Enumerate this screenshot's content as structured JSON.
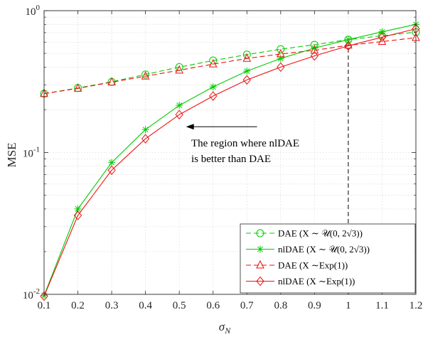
{
  "chart_data": {
    "type": "line",
    "title": "",
    "xlabel": "σ",
    "xlabel_subscript": "N",
    "ylabel": "MSE",
    "x": [
      0.1,
      0.2,
      0.3,
      0.4,
      0.5,
      0.6,
      0.7,
      0.8,
      0.9,
      1.0,
      1.1,
      1.2
    ],
    "xlim": [
      0.1,
      1.2
    ],
    "ylim": [
      0.01,
      1
    ],
    "yscale": "log",
    "grid": true,
    "legend_position": "bottom-right",
    "x_tick_labels": [
      "0.1",
      "0.2",
      "0.3",
      "0.4",
      "0.5",
      "0.6",
      "0.7",
      "0.8",
      "0.9",
      "1",
      "1.1",
      "1.2"
    ],
    "y_tick_labels": [
      {
        "value": 0.01,
        "base": "10",
        "exp": "-2"
      },
      {
        "value": 0.1,
        "base": "10",
        "exp": "-1"
      },
      {
        "value": 1,
        "base": "10",
        "exp": "0"
      }
    ],
    "series": [
      {
        "name": "DAE (X ∼ 𝒰(0, 2√3))",
        "color": "#00cc00",
        "dash": true,
        "marker": "circle",
        "values": [
          0.26,
          0.285,
          0.315,
          0.355,
          0.4,
          0.445,
          0.49,
          0.535,
          0.575,
          0.625,
          0.665,
          0.705
        ]
      },
      {
        "name": "nlDAE (X ∼ 𝒰(0, 2√3))",
        "color": "#00cc00",
        "dash": false,
        "marker": "star",
        "values": [
          0.0098,
          0.04,
          0.085,
          0.145,
          0.215,
          0.29,
          0.375,
          0.46,
          0.545,
          0.625,
          0.71,
          0.8
        ]
      },
      {
        "name": "DAE (X ∼Exp(1))",
        "color": "#ee1111",
        "dash": true,
        "marker": "triangle",
        "values": [
          0.26,
          0.283,
          0.313,
          0.345,
          0.38,
          0.42,
          0.46,
          0.495,
          0.525,
          0.57,
          0.605,
          0.645
        ]
      },
      {
        "name": "nlDAE (X ∼Exp(1))",
        "color": "#ee1111",
        "dash": false,
        "marker": "diamond",
        "values": [
          0.0097,
          0.036,
          0.075,
          0.125,
          0.185,
          0.25,
          0.325,
          0.4,
          0.48,
          0.565,
          0.65,
          0.745
        ]
      }
    ],
    "annotation": {
      "lines": [
        "The region where nlDAE",
        "is better than DAE"
      ],
      "arrow_from_x": 0.73,
      "arrow_to_x": 0.52,
      "arrow_y": 0.152
    },
    "vline": {
      "x": 1.0,
      "y_from": 0.01,
      "y_to": 0.625,
      "color": "#000000"
    }
  }
}
